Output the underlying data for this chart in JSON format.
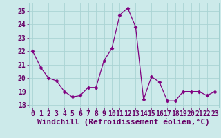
{
  "x": [
    0,
    1,
    2,
    3,
    4,
    5,
    6,
    7,
    8,
    9,
    10,
    11,
    12,
    13,
    14,
    15,
    16,
    17,
    18,
    19,
    20,
    21,
    22,
    23
  ],
  "y": [
    22.0,
    20.8,
    20.0,
    19.8,
    19.0,
    18.6,
    18.7,
    19.3,
    19.3,
    21.3,
    22.2,
    24.7,
    25.2,
    23.8,
    18.4,
    20.1,
    19.7,
    18.3,
    18.3,
    19.0,
    19.0,
    19.0,
    18.7,
    19.0
  ],
  "line_color": "#800080",
  "marker": "D",
  "marker_size": 2.5,
  "bg_color": "#cceaea",
  "grid_color": "#aad4d4",
  "xlabel": "Windchill (Refroidissement éolien,°C)",
  "tick_fontsize": 7,
  "xlabel_fontsize": 8,
  "ylim": [
    17.8,
    25.6
  ],
  "yticks": [
    18,
    19,
    20,
    21,
    22,
    23,
    24,
    25
  ],
  "xlim": [
    -0.5,
    23.5
  ],
  "xticks": [
    0,
    1,
    2,
    3,
    4,
    5,
    6,
    7,
    8,
    9,
    10,
    11,
    12,
    13,
    14,
    15,
    16,
    17,
    18,
    19,
    20,
    21,
    22,
    23
  ]
}
